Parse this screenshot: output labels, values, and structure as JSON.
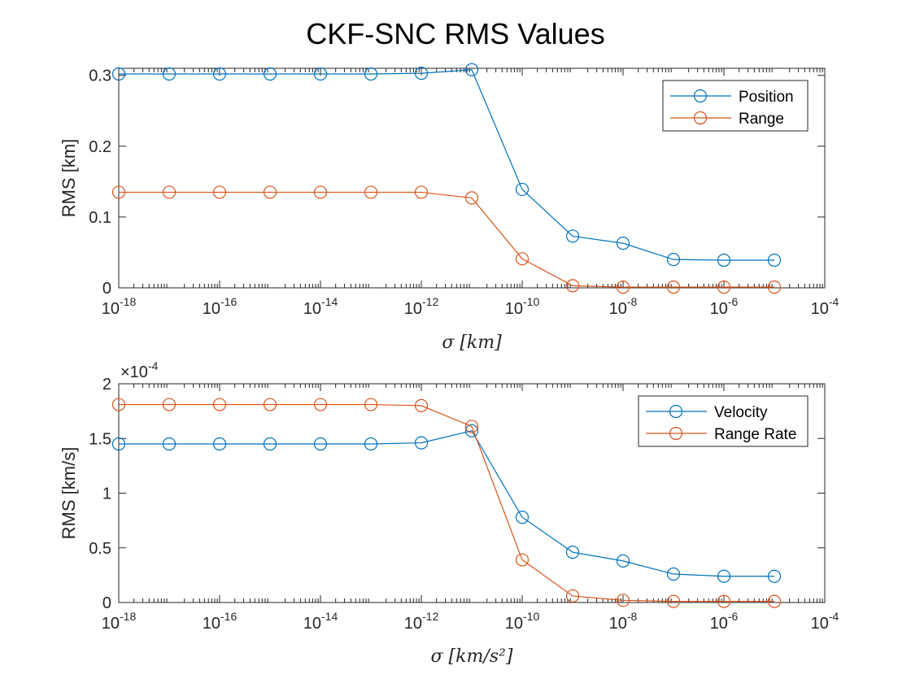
{
  "figure_title": "CKF-SNC RMS Values",
  "colors": {
    "series1": "#0072BD",
    "series2": "#D95319",
    "axis": "#262626"
  },
  "chart_data": [
    {
      "type": "line",
      "title": "",
      "xlabel": "σ [km]",
      "ylabel": "RMS [km]",
      "xscale": "log",
      "xlim": [
        1e-18,
        0.0001
      ],
      "ylim": [
        0,
        0.31
      ],
      "xticks": [
        -18,
        -16,
        -14,
        -12,
        -10,
        -8,
        -6,
        -4
      ],
      "xtick_base": "10",
      "yticks": [
        0,
        0.1,
        0.2,
        0.3
      ],
      "ytick_labels": [
        "0",
        "0.1",
        "0.2",
        "0.3"
      ],
      "y_multiplier": "",
      "grid": false,
      "legend_position": "top-right",
      "x": [
        1e-18,
        1e-17,
        1e-16,
        1e-15,
        1e-14,
        1e-13,
        1e-12,
        1e-11,
        1e-10,
        1e-09,
        1e-08,
        1e-07,
        1e-06,
        1e-05
      ],
      "series": [
        {
          "name": "Position",
          "color": "#0072BD",
          "values": [
            0.302,
            0.302,
            0.302,
            0.302,
            0.302,
            0.302,
            0.303,
            0.308,
            0.139,
            0.073,
            0.063,
            0.04,
            0.039,
            0.039
          ]
        },
        {
          "name": "Range",
          "color": "#D95319",
          "values": [
            0.135,
            0.135,
            0.135,
            0.135,
            0.135,
            0.135,
            0.135,
            0.127,
            0.041,
            0.003,
            0.001,
            0.001,
            0.001,
            0.001
          ]
        }
      ]
    },
    {
      "type": "line",
      "title": "",
      "xlabel": "σ [km/s²]",
      "ylabel": "RMS [km/s]",
      "xscale": "log",
      "xlim": [
        1e-18,
        0.0001
      ],
      "ylim": [
        0,
        2
      ],
      "xticks": [
        -18,
        -16,
        -14,
        -12,
        -10,
        -8,
        -6,
        -4
      ],
      "xtick_base": "10",
      "yticks": [
        0,
        0.5,
        1,
        1.5,
        2
      ],
      "ytick_labels": [
        "0",
        "0.5",
        "1",
        "1.5",
        "2"
      ],
      "y_multiplier": "×10",
      "y_multiplier_exponent": "-4",
      "grid": false,
      "legend_position": "top-right",
      "x": [
        1e-18,
        1e-17,
        1e-16,
        1e-15,
        1e-14,
        1e-13,
        1e-12,
        1e-11,
        1e-10,
        1e-09,
        1e-08,
        1e-07,
        1e-06,
        1e-05
      ],
      "series": [
        {
          "name": "Velocity",
          "color": "#0072BD",
          "values": [
            1.45,
            1.45,
            1.45,
            1.45,
            1.45,
            1.45,
            1.46,
            1.57,
            0.78,
            0.46,
            0.38,
            0.26,
            0.24,
            0.24
          ]
        },
        {
          "name": "Range Rate",
          "color": "#D95319",
          "values": [
            1.81,
            1.81,
            1.81,
            1.81,
            1.81,
            1.81,
            1.8,
            1.61,
            0.39,
            0.06,
            0.02,
            0.01,
            0.01,
            0.01
          ]
        }
      ]
    }
  ]
}
